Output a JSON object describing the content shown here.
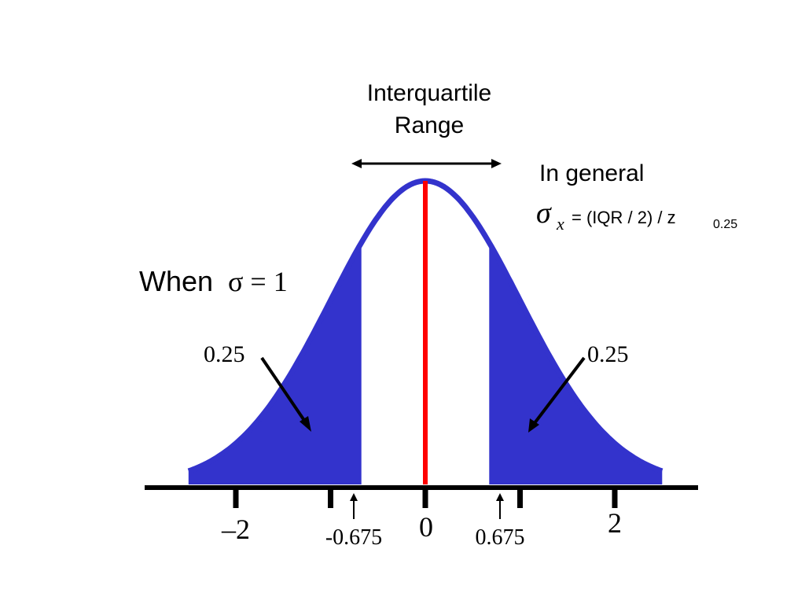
{
  "title": {
    "line1": "Interquartile",
    "line2": "Range"
  },
  "formula": {
    "heading": "In general",
    "sigma": "σ",
    "subscript": "x",
    "rhs": " = (IQR / 2) / z",
    "rhs_subscript": "0.25"
  },
  "condition": {
    "prefix": "When ",
    "expr": "σ = 1"
  },
  "tail_labels": {
    "left": "0.25",
    "right": "0.25"
  },
  "axis": {
    "ticks": [
      -2,
      -1,
      0,
      1,
      2
    ],
    "tick_labels": [
      {
        "value": -2,
        "text": "–2"
      },
      {
        "value": 0,
        "text": "0"
      },
      {
        "value": 2,
        "text": "2"
      }
    ],
    "quartile_labels": [
      {
        "value": -0.675,
        "text": "-0.675"
      },
      {
        "value": 0.675,
        "text": "0.675"
      }
    ],
    "range": [
      -2.5,
      2.5
    ]
  },
  "colors": {
    "curve": "#3333cc",
    "fill": "#3333cc",
    "mean_line": "#ff0000",
    "axis": "#000000"
  }
}
